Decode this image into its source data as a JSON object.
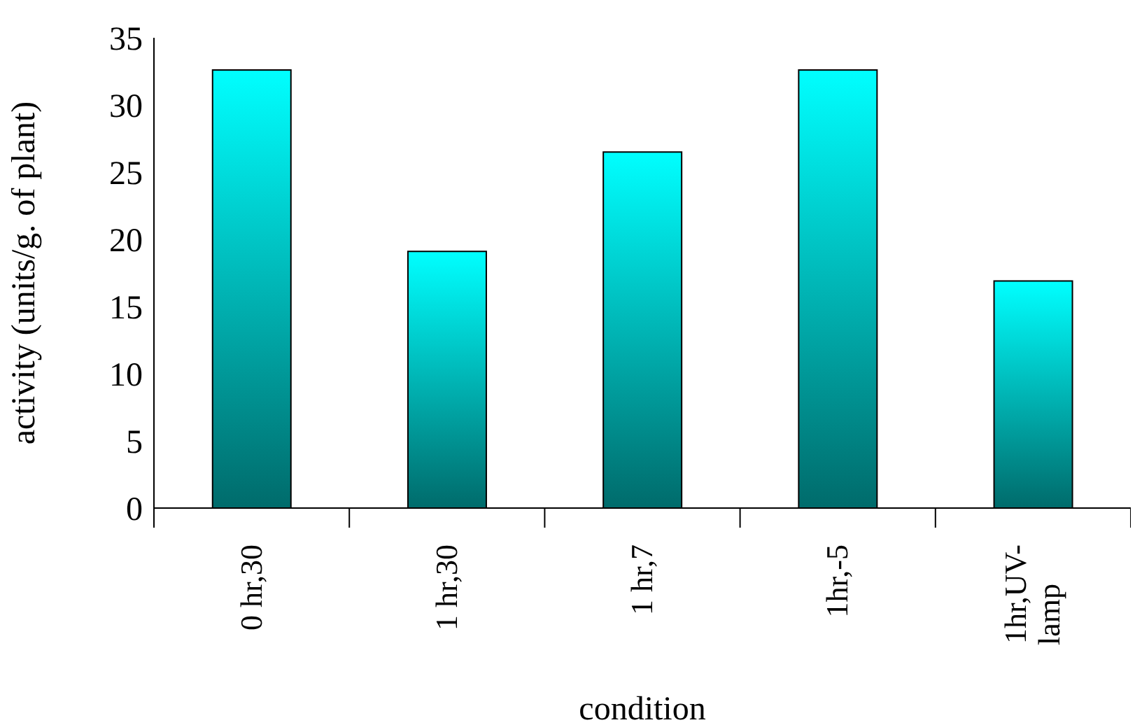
{
  "chart_data": {
    "type": "bar",
    "xlabel": "condition",
    "ylabel": "activity (units/g. of plant)",
    "categories": [
      "0 hr,30",
      "1 hr,30",
      "1 hr,7",
      "1hr,-5",
      "1hr,UV-lamp"
    ],
    "values": [
      32.6,
      19.1,
      26.5,
      32.6,
      16.9
    ],
    "color": "#00ffff",
    "ylim": [
      0,
      35
    ],
    "yticks": [
      0,
      5,
      10,
      15,
      20,
      25,
      30,
      35
    ],
    "grid": false,
    "legend": false
  }
}
